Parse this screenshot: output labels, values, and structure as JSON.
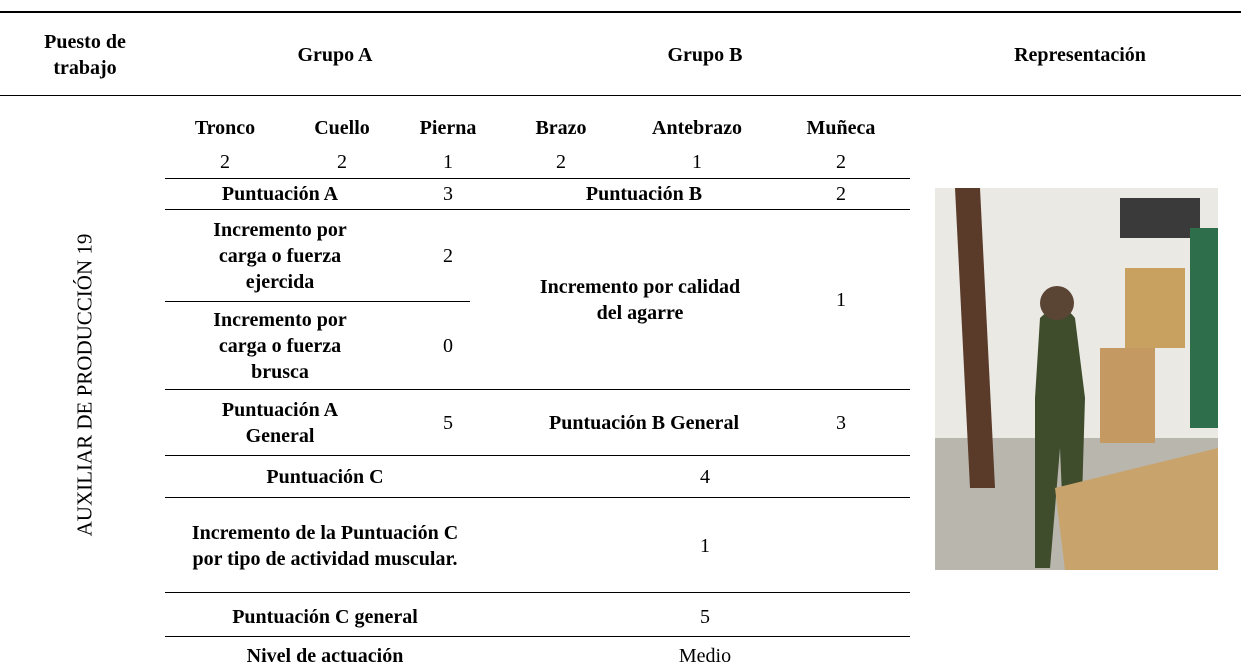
{
  "header": {
    "puesto": "Puesto de trabajo",
    "grupo_a": "Grupo A",
    "grupo_b": "Grupo B",
    "representacion": "Representación"
  },
  "puesto": "AUXILIAR DE PRODUCCIÓN 19",
  "table": {
    "columns": [
      "Tronco",
      "Cuello",
      "Pierna",
      "Brazo",
      "Antebrazo",
      "Muñeca"
    ],
    "scores": [
      2,
      2,
      1,
      2,
      1,
      2
    ],
    "puntuacion_a": {
      "label": "Puntuación A",
      "value": 3
    },
    "puntuacion_b": {
      "label": "Puntuación B",
      "value": 2
    },
    "incremento_ejercida": {
      "label": "Incremento por carga o fuerza ejercida",
      "value": 2
    },
    "incremento_brusca": {
      "label": "Incremento por carga o fuerza brusca",
      "value": 0
    },
    "incremento_agarre": {
      "label": "Incremento por calidad del agarre",
      "value": 1
    },
    "puntuacion_a_general": {
      "label": "Puntuación A General",
      "value": 5
    },
    "puntuacion_b_general": {
      "label": "Puntuación B General",
      "value": 3
    },
    "puntuacion_c": {
      "label": "Puntuación C",
      "value": 4
    },
    "incremento_c": {
      "label": "Incremento de la Puntuación C por tipo de actividad muscular.",
      "value": 1
    },
    "puntuacion_c_general": {
      "label": "Puntuación C general",
      "value": 5
    },
    "nivel_actuacion": {
      "label": "Nivel de actuación",
      "value": "Medio"
    }
  }
}
